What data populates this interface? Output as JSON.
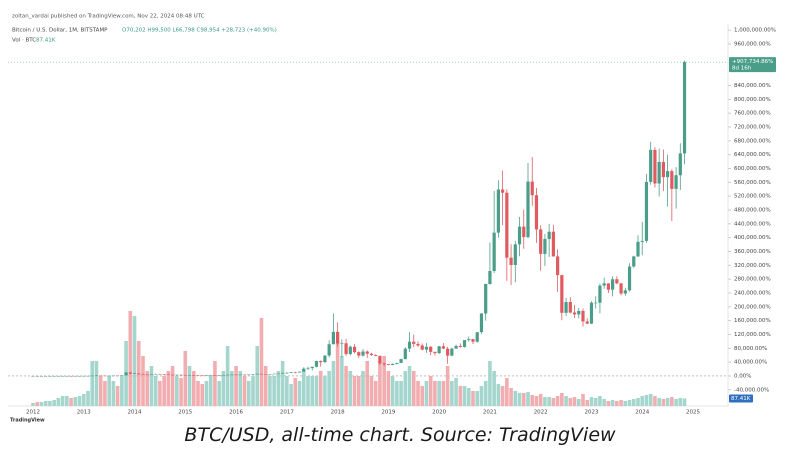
{
  "chart_data": {
    "type": "candlestick",
    "header": "zoltan_vardai published on TradingView.com, Nov 22, 2024 08:48 UTC",
    "symbol": "Bitcoin / U.S. Dollar, 1M, BITSTAMP",
    "ohlc_text": "O70,202 H99,500 L66,798 C98,954 +28,723 (+40.90%)",
    "volume_legend": "Vol · BTC",
    "last_volume_label": "87.41K",
    "last_price_label": "+907,734.86%",
    "countdown": "8d 16h",
    "watermark": "TradingView",
    "up_color": "#4a9e89",
    "down_color": "#e05a5f",
    "up_volume_color": "#a4d6cd",
    "down_volume_color": "#f2adb0",
    "categories": [
      "2012",
      null,
      null,
      null,
      null,
      null,
      null,
      null,
      null,
      null,
      null,
      null,
      "2013",
      null,
      null,
      null,
      null,
      null,
      null,
      null,
      null,
      null,
      null,
      null,
      "2014",
      null,
      null,
      null,
      null,
      null,
      null,
      null,
      null,
      null,
      null,
      null,
      "2015",
      null,
      null,
      null,
      null,
      null,
      null,
      null,
      null,
      null,
      null,
      null,
      "2016",
      null,
      null,
      null,
      null,
      null,
      null,
      null,
      null,
      null,
      null,
      null,
      "2017",
      null,
      null,
      null,
      null,
      null,
      null,
      null,
      null,
      null,
      null,
      null,
      "2018",
      null,
      null,
      null,
      null,
      null,
      null,
      null,
      null,
      null,
      null,
      null,
      "2019",
      null,
      null,
      null,
      null,
      null,
      null,
      null,
      null,
      null,
      null,
      null,
      "2020",
      null,
      null,
      null,
      null,
      null,
      null,
      null,
      null,
      null,
      null,
      null,
      "2021",
      null,
      null,
      null,
      null,
      null,
      null,
      null,
      null,
      null,
      null,
      null,
      "2022",
      null,
      null,
      null,
      null,
      null,
      null,
      null,
      null,
      null,
      null,
      null,
      "2023",
      null,
      null,
      null,
      null,
      null,
      null,
      null,
      null,
      null,
      null,
      null,
      "2024",
      null,
      null,
      null,
      null,
      null,
      null,
      null,
      null,
      null,
      null,
      null,
      "2025"
    ],
    "ohlc": [
      [
        -51,
        -30,
        -60,
        -50
      ],
      [
        -50,
        -45,
        -62,
        -55
      ],
      [
        -55,
        -50,
        -58,
        -55
      ],
      [
        -55,
        -50,
        -57,
        -54
      ],
      [
        -54,
        -48,
        -56,
        -53
      ],
      [
        -53,
        -35,
        -54,
        -39
      ],
      [
        -39,
        -10,
        -40,
        -15
      ],
      [
        -15,
        20,
        -40,
        -6
      ],
      [
        -6,
        20,
        -10,
        14
      ],
      [
        14,
        20,
        -5,
        3
      ],
      [
        3,
        18,
        -2,
        16
      ],
      [
        16,
        30,
        10,
        24
      ],
      [
        24,
        90,
        20,
        87
      ],
      [
        87,
        210,
        80,
        206
      ],
      [
        206,
        780,
        200,
        753
      ],
      [
        753,
        2100,
        500,
        1175
      ],
      [
        1175,
        1250,
        750,
        1083
      ],
      [
        1083,
        1100,
        700,
        789
      ],
      [
        789,
        900,
        600,
        872
      ],
      [
        872,
        1150,
        850,
        1138
      ],
      [
        1138,
        1300,
        1000,
        1120
      ],
      [
        1120,
        1950,
        1050,
        1716
      ],
      [
        1716,
        10800,
        1650,
        10262
      ],
      [
        10262,
        10700,
        4400,
        6612
      ],
      [
        6612,
        8600,
        6000,
        7236
      ],
      [
        7236,
        7300,
        3600,
        4944
      ],
      [
        4944,
        6000,
        4000,
        4027
      ],
      [
        4027,
        4600,
        3100,
        3935
      ],
      [
        3935,
        5900,
        3900,
        5677
      ],
      [
        5677,
        6100,
        5100,
        5769
      ],
      [
        5769,
        5900,
        5000,
        5219
      ],
      [
        5219,
        5500,
        4100,
        4302
      ],
      [
        4302,
        4400,
        3300,
        3476
      ],
      [
        3476,
        3800,
        2600,
        2926
      ],
      [
        2926,
        4000,
        2900,
        3385
      ],
      [
        3385,
        3600,
        2800,
        2834
      ],
      [
        2834,
        2900,
        1400,
        1917
      ],
      [
        1917,
        2500,
        1800,
        2193
      ],
      [
        2193,
        2700,
        1900,
        2147
      ],
      [
        2147,
        2300,
        1900,
        2055
      ],
      [
        2055,
        2150,
        1900,
        2009
      ],
      [
        2009,
        2400,
        1950,
        2312
      ],
      [
        2312,
        2800,
        2200,
        2513
      ],
      [
        2513,
        2600,
        1500,
        2009
      ],
      [
        2009,
        2200,
        1900,
        2073
      ],
      [
        2073,
        3000,
        2050,
        2789
      ],
      [
        2789,
        4300,
        2800,
        3366
      ],
      [
        3366,
        4100,
        3200,
        3843
      ],
      [
        3843,
        4000,
        3200,
        3293
      ],
      [
        3293,
        4000,
        3200,
        3907
      ],
      [
        3907,
        4000,
        3600,
        3706
      ],
      [
        3706,
        4100,
        3600,
        4008
      ],
      [
        4008,
        4800,
        3900,
        4760
      ],
      [
        4760,
        7000,
        4700,
        6044
      ],
      [
        6044,
        6100,
        4800,
        5585
      ],
      [
        5585,
        5600,
        4800,
        5173
      ],
      [
        5173,
        5600,
        5100,
        5494
      ],
      [
        5494,
        6600,
        5400,
        6319
      ],
      [
        6319,
        6800,
        6100,
        6732
      ],
      [
        6732,
        8900,
        6600,
        8731
      ],
      [
        8731,
        10800,
        6700,
        8900
      ],
      [
        8900,
        11000,
        8300,
        10900
      ],
      [
        10900,
        12000,
        7600,
        9900
      ],
      [
        9900,
        12400,
        9700,
        12400
      ],
      [
        12400,
        25000,
        12300,
        21100
      ],
      [
        21100,
        27000,
        17000,
        22700
      ],
      [
        22700,
        26500,
        16000,
        26400
      ],
      [
        26400,
        44000,
        24700,
        43100
      ],
      [
        43100,
        45000,
        27000,
        39800
      ],
      [
        39800,
        59500,
        37500,
        59100
      ],
      [
        59100,
        103000,
        53000,
        91700
      ],
      [
        91700,
        180600,
        91000,
        127500
      ],
      [
        127500,
        155000,
        85000,
        93500
      ],
      [
        93500,
        106000,
        54000,
        94500
      ],
      [
        94500,
        107000,
        58000,
        63300
      ],
      [
        63300,
        88000,
        59000,
        84400
      ],
      [
        84400,
        92000,
        65000,
        68800
      ],
      [
        68800,
        71000,
        52000,
        58700
      ],
      [
        58700,
        78000,
        56000,
        70600
      ],
      [
        70600,
        74000,
        52000,
        64200
      ],
      [
        64200,
        67000,
        58000,
        60500
      ],
      [
        60500,
        62000,
        57000,
        57800
      ],
      [
        57800,
        59000,
        32000,
        36700
      ],
      [
        36700,
        38000,
        29000,
        33900
      ],
      [
        33900,
        35000,
        31000,
        31600
      ],
      [
        31600,
        36000,
        31000,
        34800
      ],
      [
        34800,
        38000,
        33000,
        37600
      ],
      [
        37600,
        50000,
        37000,
        48600
      ],
      [
        48600,
        83000,
        48000,
        78900
      ],
      [
        78900,
        127000,
        69000,
        99000
      ],
      [
        99000,
        120000,
        83000,
        92600
      ],
      [
        92600,
        100000,
        84000,
        88000
      ],
      [
        88000,
        94000,
        74000,
        76100
      ],
      [
        76100,
        95000,
        67000,
        84400
      ],
      [
        84400,
        86000,
        60000,
        69700
      ],
      [
        69700,
        70000,
        59000,
        66000
      ],
      [
        66000,
        87000,
        63000,
        85700
      ],
      [
        85700,
        95000,
        78000,
        78900
      ],
      [
        78900,
        84000,
        35000,
        58700
      ],
      [
        58700,
        82000,
        57000,
        78900
      ],
      [
        78900,
        91000,
        79000,
        86700
      ],
      [
        86700,
        94000,
        82000,
        83800
      ],
      [
        83800,
        104000,
        82000,
        103600
      ],
      [
        103600,
        114000,
        99000,
        106400
      ],
      [
        106400,
        107000,
        92000,
        99000
      ],
      [
        99000,
        127000,
        96000,
        126500
      ],
      [
        126500,
        182000,
        122000,
        180600
      ],
      [
        180600,
        267000,
        160000,
        265900
      ],
      [
        265900,
        386000,
        264000,
        303500
      ],
      [
        303500,
        535000,
        298000,
        414500
      ],
      [
        414500,
        566000,
        400000,
        539200
      ],
      [
        539200,
        594000,
        436000,
        530000
      ],
      [
        530000,
        540000,
        275000,
        342000
      ],
      [
        342000,
        381000,
        263000,
        321000
      ],
      [
        321000,
        390000,
        271000,
        380600
      ],
      [
        380600,
        460000,
        346000,
        431900
      ],
      [
        431900,
        481000,
        368000,
        401600
      ],
      [
        401600,
        616000,
        398000,
        562100
      ],
      [
        562100,
        633000,
        492000,
        522700
      ],
      [
        522700,
        544000,
        385000,
        423700
      ],
      [
        423700,
        436000,
        304000,
        353000
      ],
      [
        353000,
        411000,
        318000,
        396100
      ],
      [
        396100,
        440000,
        344000,
        417200
      ],
      [
        417200,
        437000,
        345000,
        345700
      ],
      [
        345700,
        366000,
        243000,
        291600
      ],
      [
        291600,
        293000,
        161000,
        182500
      ],
      [
        182500,
        226000,
        173000,
        213700
      ],
      [
        213700,
        228000,
        181000,
        183400
      ],
      [
        183400,
        205000,
        168000,
        177900
      ],
      [
        177900,
        197000,
        167000,
        188000
      ],
      [
        188000,
        195000,
        143000,
        157700
      ],
      [
        157700,
        167000,
        150000,
        151300
      ],
      [
        151300,
        216000,
        150000,
        211800
      ],
      [
        211800,
        230000,
        195000,
        211800
      ],
      [
        211800,
        267000,
        181000,
        261300
      ],
      [
        261300,
        284000,
        252000,
        267800
      ],
      [
        267800,
        268000,
        240000,
        249400
      ],
      [
        249400,
        288000,
        230000,
        279700
      ],
      [
        279700,
        288000,
        265000,
        267800
      ],
      [
        267800,
        269000,
        233000,
        238400
      ],
      [
        238400,
        255000,
        232000,
        247600
      ],
      [
        247600,
        326000,
        244000,
        316400
      ],
      [
        316400,
        348000,
        313000,
        345700
      ],
      [
        345700,
        407000,
        344000,
        387900
      ],
      [
        387900,
        446000,
        349000,
        390600
      ],
      [
        390600,
        584000,
        385000,
        561200
      ],
      [
        561200,
        677000,
        553000,
        653800
      ],
      [
        653800,
        662000,
        545000,
        556600
      ],
      [
        556600,
        658000,
        519000,
        619000
      ],
      [
        619000,
        655000,
        535000,
        575000
      ],
      [
        575000,
        640000,
        490000,
        592400
      ],
      [
        592400,
        598000,
        448000,
        541000
      ],
      [
        541000,
        604000,
        484000,
        580500
      ],
      [
        580500,
        673000,
        538000,
        643700
      ],
      [
        643700,
        912300,
        612000,
        907734.86
      ],
      null,
      null
    ],
    "volume": [
      35000,
      46000,
      46000,
      58000,
      58000,
      70000,
      93000,
      116000,
      116000,
      93000,
      104000,
      116000,
      139000,
      174000,
      522000,
      522000,
      348000,
      290000,
      348000,
      290000,
      232000,
      348000,
      754000,
      1102000,
      1044000,
      754000,
      580000,
      406000,
      464000,
      348000,
      290000,
      348000,
      406000,
      464000,
      348000,
      325000,
      638000,
      464000,
      406000,
      290000,
      255000,
      290000,
      348000,
      522000,
      290000,
      406000,
      696000,
      406000,
      464000,
      406000,
      348000,
      290000,
      348000,
      696000,
      1021000,
      464000,
      348000,
      348000,
      406000,
      522000,
      348000,
      255000,
      325000,
      290000,
      406000,
      348000,
      348000,
      348000,
      406000,
      348000,
      406000,
      522000,
      754000,
      580000,
      464000,
      406000,
      348000,
      348000,
      406000,
      522000,
      348000,
      290000,
      522000,
      580000,
      406000,
      348000,
      290000,
      290000,
      406000,
      464000,
      406000,
      290000,
      232000,
      290000,
      348000,
      290000,
      290000,
      290000,
      464000,
      290000,
      325000,
      232000,
      232000,
      209000,
      174000,
      174000,
      232000,
      290000,
      522000,
      406000,
      255000,
      232000,
      325000,
      209000,
      174000,
      151000,
      151000,
      162000,
      128000,
      116000,
      139000,
      104000,
      104000,
      93000,
      116000,
      151000,
      116000,
      93000,
      104000,
      81000,
      139000,
      70000,
      104000,
      93000,
      116000,
      81000,
      58000,
      70000,
      58000,
      70000,
      58000,
      70000,
      81000,
      93000,
      116000,
      128000,
      139000,
      116000,
      93000,
      81000,
      93000,
      104000,
      81000,
      93000,
      87410,
      null,
      null
    ],
    "ylim": [
      -87000,
      1018000
    ],
    "yticks": [
      {
        "value": -40000,
        "label": "-40,000.00%"
      },
      {
        "value": 0,
        "label": "0.00%"
      },
      {
        "value": 40000,
        "label": "40,000.00%"
      },
      {
        "value": 80000,
        "label": "80,000.00%"
      },
      {
        "value": 120000,
        "label": "120,000.00%"
      },
      {
        "value": 160000,
        "label": "160,000.00%"
      },
      {
        "value": 200000,
        "label": "200,000.00%"
      },
      {
        "value": 240000,
        "label": "240,000.00%"
      },
      {
        "value": 280000,
        "label": "280,000.00%"
      },
      {
        "value": 320000,
        "label": "320,000.00%"
      },
      {
        "value": 360000,
        "label": "360,000.00%"
      },
      {
        "value": 400000,
        "label": "400,000.00%"
      },
      {
        "value": 440000,
        "label": "440,000.00%"
      },
      {
        "value": 480000,
        "label": "480,000.00%"
      },
      {
        "value": 520000,
        "label": "520,000.00%"
      },
      {
        "value": 560000,
        "label": "560,000.00%"
      },
      {
        "value": 600000,
        "label": "600,000.00%"
      },
      {
        "value": 640000,
        "label": "640,000.00%"
      },
      {
        "value": 680000,
        "label": "680,000.00%"
      },
      {
        "value": 720000,
        "label": "720,000.00%"
      },
      {
        "value": 760000,
        "label": "760,000.00%"
      },
      {
        "value": 800000,
        "label": "800,000.00%"
      },
      {
        "value": 840000,
        "label": "840,000.00%"
      },
      {
        "value": 960000,
        "label": "960,000.00%"
      },
      {
        "value": 1000000,
        "label": "1,000,000.00%"
      }
    ]
  },
  "caption": "BTC/USD, all-time chart. Source: TradingView"
}
